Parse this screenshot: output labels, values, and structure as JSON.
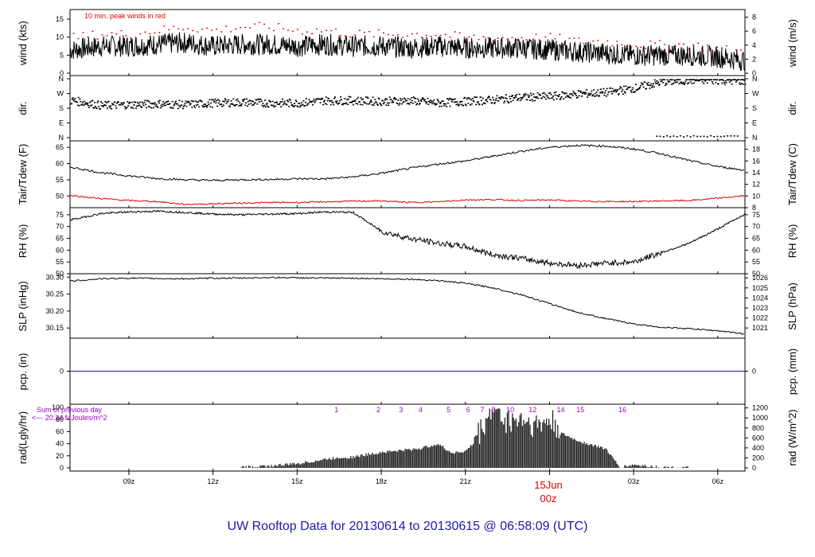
{
  "title": "UW Rooftop Data for 20130614  to  20130615 @ 06:58:09  (UTC)",
  "x_axis": {
    "ticks": [
      "09z",
      "12z",
      "15z",
      "18z",
      "21z",
      "00z",
      "03z",
      "06z"
    ],
    "date_label": "15Jun",
    "date_sublabel": "00z",
    "x_range_hours": [
      6.9,
      30.97
    ]
  },
  "panels": {
    "wind": {
      "ylabel_left": "wind (kts)",
      "ylabel_right": "wind (m/s)",
      "annotation": "10 min. peak winds in red",
      "left_ticks": [
        "0",
        "5",
        "10",
        "15"
      ],
      "right_ticks": [
        "0",
        "2",
        "4",
        "6",
        "8"
      ]
    },
    "dir": {
      "ylabel_left": "dir.",
      "ylabel_right": "dir.",
      "ticks": [
        "N",
        "E",
        "S",
        "W",
        "N"
      ]
    },
    "temp": {
      "ylabel_left": "Tair/Tdew (F)",
      "ylabel_right": "Tair/Tdew (C)",
      "left_ticks": [
        "50",
        "55",
        "60",
        "65"
      ],
      "right_ticks": [
        "8",
        "10",
        "12",
        "14",
        "16",
        "18"
      ]
    },
    "rh": {
      "ylabel_left": "RH (%)",
      "ylabel_right": "RH (%)",
      "ticks": [
        "50",
        "55",
        "60",
        "65",
        "70",
        "75"
      ]
    },
    "slp": {
      "ylabel_left": "SLP (inHg)",
      "ylabel_right": "SLP (hPa)",
      "left_ticks": [
        "30.15",
        "30.20",
        "30.25",
        "30.30"
      ],
      "right_ticks": [
        "1021",
        "1022",
        "1023",
        "1024",
        "1025",
        "1026"
      ]
    },
    "pcp": {
      "ylabel_left": "pcp. (in)",
      "ylabel_right": "pcp. (mm)",
      "left_ticks": [
        "0"
      ],
      "right_ticks": [
        "0"
      ]
    },
    "rad": {
      "ylabel_left": "rad(Lgly/hr)",
      "ylabel_right": "rad (W/m^2)",
      "left_ticks": [
        "0",
        "20",
        "40",
        "60",
        "80",
        "100"
      ],
      "right_ticks": [
        "0",
        "200",
        "400",
        "600",
        "800",
        "1000",
        "1200"
      ],
      "note_line1": "Sum of previous day",
      "note_line2": "<--- 20.24 MJoules/m^2",
      "hour_marks": [
        "1",
        "2",
        "3",
        "4",
        "5",
        "6",
        "7",
        "8",
        "10",
        "12",
        "14",
        "15",
        "16"
      ]
    }
  },
  "chart_data": [
    {
      "type": "line",
      "name": "wind",
      "xlabel": "",
      "ylabel": "wind (kts)",
      "ylim": [
        0,
        17
      ],
      "x_hours": [
        7,
        8,
        9,
        10,
        11,
        12,
        13,
        14,
        15,
        16,
        17,
        18,
        19,
        20,
        21,
        22,
        23,
        24,
        25,
        26,
        27,
        28,
        29,
        30,
        31
      ],
      "series": [
        {
          "name": "wind",
          "values": [
            6.5,
            7.5,
            7.5,
            8.0,
            8.5,
            7.5,
            8.0,
            8.0,
            7.5,
            8.0,
            7.5,
            7.5,
            7.0,
            7.5,
            7.0,
            7.0,
            7.0,
            6.5,
            6.0,
            5.5,
            5.0,
            5.0,
            5.0,
            4.5,
            3.5
          ]
        },
        {
          "name": "10 min. peak winds",
          "values": [
            10,
            11,
            11,
            12,
            13,
            12,
            13,
            13,
            12,
            12,
            11,
            11,
            11,
            11,
            10,
            10,
            10,
            10,
            9,
            9,
            8,
            8,
            8,
            7,
            6
          ]
        }
      ]
    },
    {
      "type": "scatter",
      "name": "dir.",
      "ylabel": "dir.",
      "ylim": [
        0,
        360
      ],
      "x_hours": [
        7,
        8,
        9,
        10,
        11,
        12,
        13,
        14,
        15,
        16,
        17,
        18,
        19,
        20,
        21,
        22,
        23,
        24,
        25,
        26,
        27,
        28,
        29,
        30,
        31
      ],
      "values": [
        230,
        200,
        205,
        210,
        205,
        215,
        220,
        215,
        215,
        230,
        230,
        225,
        230,
        215,
        225,
        235,
        250,
        255,
        270,
        280,
        305,
        345,
        355,
        355,
        350
      ]
    },
    {
      "type": "line",
      "name": "Tair/Tdew",
      "ylabel": "Tair/Tdew (F)",
      "ylim": [
        46.4,
        67
      ],
      "x_hours": [
        7,
        8,
        9,
        10,
        11,
        12,
        13,
        14,
        15,
        16,
        17,
        18,
        19,
        20,
        21,
        22,
        23,
        24,
        25,
        26,
        27,
        28,
        29,
        30,
        31
      ],
      "series": [
        {
          "name": "Tair",
          "values": [
            58.8,
            57.2,
            56.2,
            55.4,
            55.0,
            54.8,
            55.0,
            55.1,
            55.3,
            55.3,
            55.9,
            57.0,
            58.5,
            59.8,
            60.8,
            62.3,
            63.8,
            65.0,
            65.6,
            65.4,
            64.5,
            63.0,
            60.9,
            59.1,
            57.9
          ]
        },
        {
          "name": "Tdew",
          "values": [
            50.1,
            49.2,
            48.6,
            48.3,
            47.4,
            47.6,
            47.8,
            48.0,
            48.0,
            48.2,
            48.4,
            48.5,
            48.0,
            48.2,
            48.8,
            48.9,
            48.6,
            48.8,
            48.4,
            48.3,
            48.3,
            48.5,
            48.6,
            49.3,
            50.1
          ]
        }
      ]
    },
    {
      "type": "line",
      "name": "RH",
      "ylabel": "RH (%)",
      "ylim": [
        50,
        78
      ],
      "x_hours": [
        7,
        8,
        9,
        10,
        11,
        12,
        13,
        14,
        15,
        16,
        17,
        18,
        19,
        20,
        21,
        22,
        23,
        24,
        25,
        26,
        27,
        28,
        29,
        30,
        31
      ],
      "values": [
        73.0,
        75.5,
        76.2,
        76.5,
        76.0,
        75.3,
        75.0,
        75.3,
        75.5,
        76.2,
        76.0,
        68.0,
        65.0,
        63.0,
        61.5,
        58.0,
        56.5,
        54.5,
        53.5,
        54.5,
        55.0,
        59.0,
        63.0,
        69.0,
        75.5
      ]
    },
    {
      "type": "line",
      "name": "SLP",
      "ylabel": "SLP (inHg)",
      "ylim": [
        30.12,
        30.31
      ],
      "x_hours": [
        7,
        8,
        9,
        10,
        11,
        12,
        13,
        14,
        15,
        16,
        17,
        18,
        19,
        20,
        21,
        22,
        23,
        24,
        25,
        26,
        27,
        28,
        29,
        30,
        31
      ],
      "values": [
        30.289,
        30.295,
        30.297,
        30.296,
        30.295,
        30.297,
        30.297,
        30.299,
        30.298,
        30.297,
        30.297,
        30.295,
        30.294,
        30.29,
        30.282,
        30.268,
        30.248,
        30.222,
        30.196,
        30.178,
        30.162,
        30.152,
        30.148,
        30.142,
        30.132
      ]
    },
    {
      "type": "line",
      "name": "pcp.",
      "ylabel": "pcp. (in)",
      "ylim": [
        -1,
        1
      ],
      "x_hours": [
        7,
        31
      ],
      "values": [
        0,
        0
      ]
    },
    {
      "type": "area",
      "name": "rad",
      "ylabel": "rad(Lgly/hr)",
      "ylim": [
        0,
        100
      ],
      "x_hours": [
        7,
        8,
        9,
        10,
        11,
        12,
        13,
        14,
        15,
        16,
        16.5,
        17,
        17.5,
        18,
        18.5,
        19,
        19.5,
        20,
        20.5,
        21,
        21.5,
        22,
        22.5,
        23,
        23.5,
        24,
        24.5,
        25,
        25.5,
        26,
        26.5,
        27,
        27.5,
        28,
        29,
        30,
        31
      ],
      "values": [
        0,
        0,
        0,
        0,
        0,
        0,
        1,
        3,
        7,
        14,
        17,
        18,
        22,
        26,
        28,
        30,
        33,
        40,
        25,
        27,
        50,
        95,
        70,
        75,
        62,
        70,
        55,
        45,
        38,
        32,
        1,
        5,
        3,
        1,
        0,
        0,
        0
      ]
    }
  ]
}
